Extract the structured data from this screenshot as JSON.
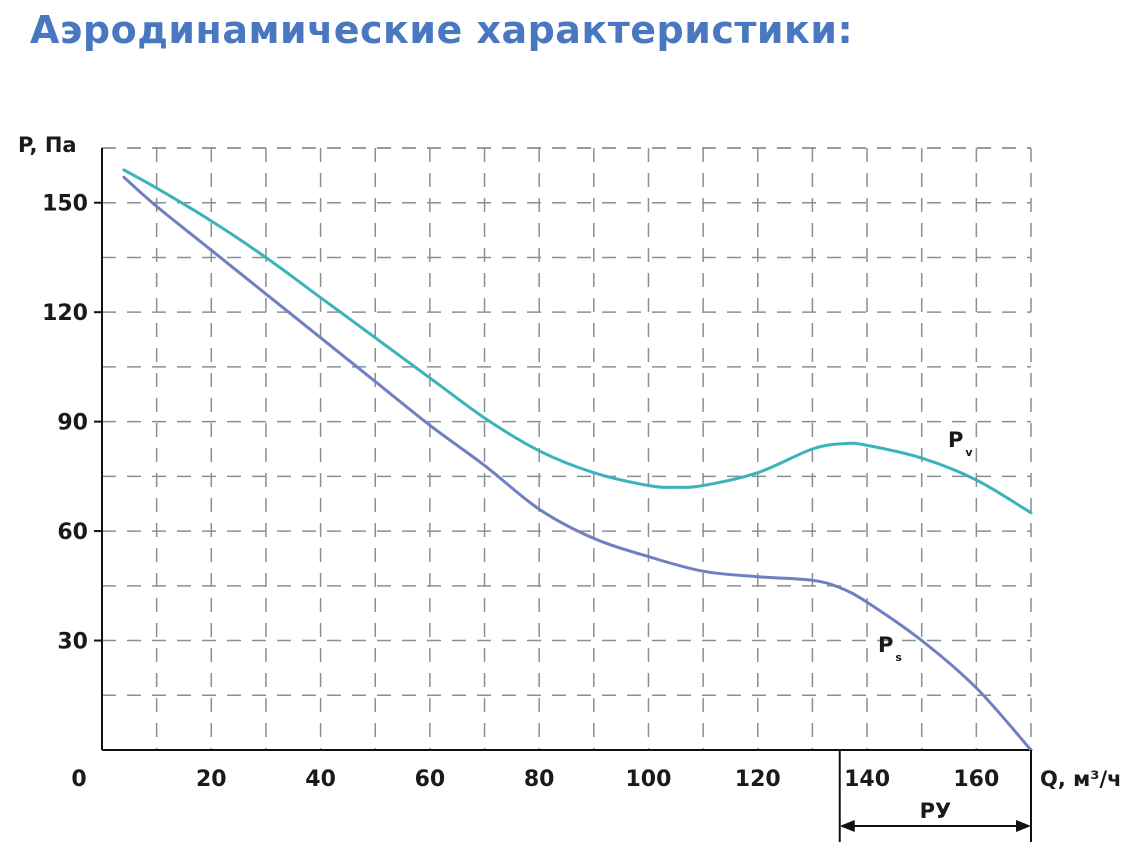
{
  "page": {
    "title": "Аэродинамические характеристики:"
  },
  "chart_data": {
    "type": "line",
    "title": "Аэродинамические характеристики:",
    "xlabel": "Q, м³/ч",
    "ylabel": "P, Па",
    "xlim": [
      0,
      170
    ],
    "ylim": [
      0,
      165
    ],
    "x_ticks": [
      0,
      20,
      40,
      60,
      80,
      100,
      120,
      140,
      160
    ],
    "x_tick_labels": [
      "0",
      "20",
      "40",
      "60",
      "80",
      "100",
      "120",
      "140",
      "160"
    ],
    "y_ticks": [
      30,
      60,
      90,
      120,
      150
    ],
    "y_tick_labels": [
      "30",
      "60",
      "90",
      "120",
      "150"
    ],
    "grid": true,
    "series": [
      {
        "name": "Pv",
        "label_main": "P",
        "label_sub": "v",
        "color": "#3bb3b8",
        "x": [
          4,
          10,
          20,
          30,
          40,
          50,
          60,
          70,
          80,
          90,
          100,
          105,
          110,
          120,
          130,
          136,
          140,
          150,
          160,
          170
        ],
        "y": [
          159,
          154,
          145,
          135,
          124,
          113,
          102,
          91,
          82,
          76,
          72.5,
          72,
          72.5,
          76,
          82.5,
          84,
          83.5,
          80,
          74,
          65
        ]
      },
      {
        "name": "Ps",
        "label_main": "P",
        "label_sub": "s",
        "color": "#6f7fc0",
        "x": [
          4,
          10,
          20,
          30,
          40,
          50,
          60,
          70,
          80,
          90,
          100,
          110,
          120,
          130,
          135,
          140,
          150,
          160,
          170
        ],
        "y": [
          157,
          149,
          137,
          125,
          113,
          101,
          89,
          78,
          66,
          58,
          53,
          49,
          47.5,
          46.5,
          44.5,
          40.5,
          30,
          17,
          0
        ]
      }
    ],
    "annotations": [
      {
        "text": "РУ",
        "type": "range",
        "x_from": 135,
        "x_to": 170
      }
    ]
  }
}
